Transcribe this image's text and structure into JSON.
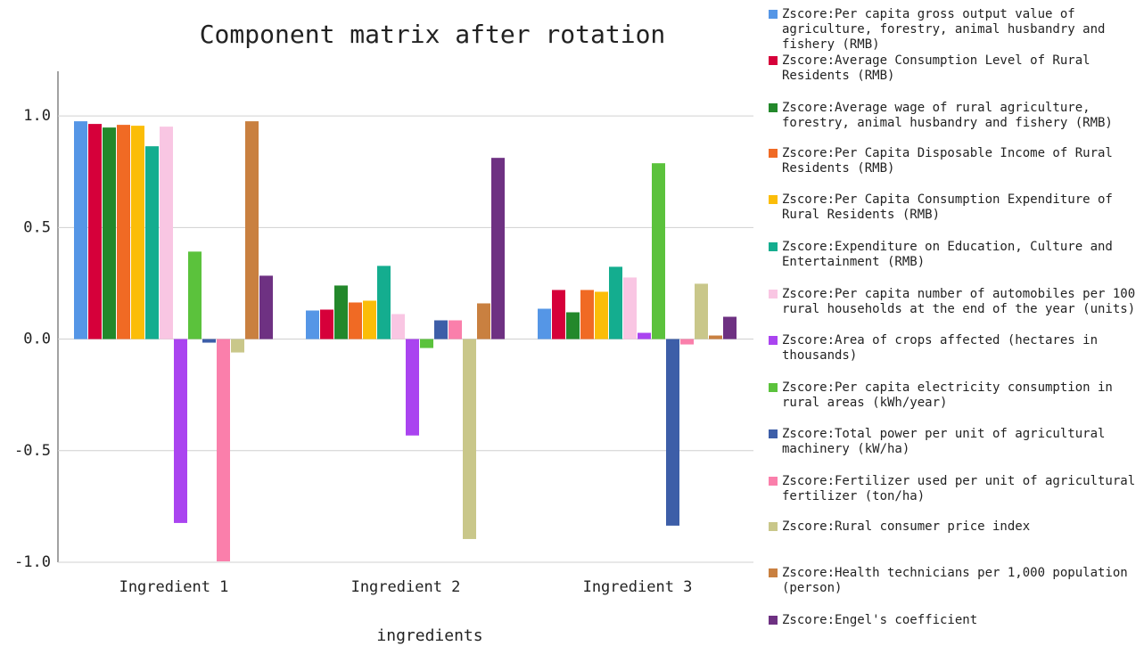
{
  "chart_data": {
    "type": "bar",
    "title": "Component matrix after rotation",
    "x_label": "ingredients",
    "categories": [
      "Ingredient 1",
      "Ingredient 2",
      "Ingredient 3"
    ],
    "ylim": [
      -1,
      1.2
    ],
    "yticks": [
      {
        "value": -1,
        "label": "-1.0"
      },
      -0.5,
      {
        "value": 0,
        "label": "0.0"
      },
      0.5,
      {
        "value": 1,
        "label": "1.0"
      }
    ],
    "grid": true,
    "series": [
      {
        "name": "Zscore:Per capita gross output value of agriculture, forestry, animal husbandry and fishery (RMB)",
        "color": "#5596e6",
        "values": [
          0.976,
          0.128,
          0.136
        ]
      },
      {
        "name": "Zscore:Average Consumption Level of Rural Residents (RMB)",
        "color": "#d6003a",
        "values": [
          0.964,
          0.132,
          0.22
        ]
      },
      {
        "name": "Zscore:Average wage of rural agriculture, forestry, animal husbandry and fishery (RMB)",
        "color": "#23882b",
        "values": [
          0.948,
          0.24,
          0.12
        ]
      },
      {
        "name": "Zscore:Per Capita Disposable Income of Rural Residents (RMB)",
        "color": "#f06a24",
        "values": [
          0.96,
          0.164,
          0.22
        ]
      },
      {
        "name": "Zscore:Per Capita Consumption Expenditure of Rural Residents (RMB)",
        "color": "#fbbd08",
        "values": [
          0.956,
          0.172,
          0.212
        ]
      },
      {
        "name": "Zscore:Expenditure on Education, Culture and Entertainment (RMB)",
        "color": "#14ad8f",
        "values": [
          0.864,
          0.328,
          0.324
        ]
      },
      {
        "name": "Zscore:Per capita number of automobiles per 100 rural households at the end of the year (units)",
        "color": "#f9c6e3",
        "values": [
          0.952,
          0.112,
          0.276
        ]
      },
      {
        "name": "Zscore:Area of crops affected (hectares in thousands)",
        "color": "#aa44f0",
        "values": [
          -0.824,
          -0.432,
          0.028
        ]
      },
      {
        "name": "Zscore:Per capita electricity consumption in rural areas (kWh/year)",
        "color": "#5bc23c",
        "values": [
          0.392,
          -0.04,
          0.788
        ]
      },
      {
        "name": "Zscore:Total power per unit of agricultural machinery (kW/ha)",
        "color": "#3d5ea8",
        "values": [
          -0.016,
          0.084,
          -0.836
        ]
      },
      {
        "name": "Zscore:Fertilizer used per unit of agricultural fertilizer (ton/ha)",
        "color": "#fa7fab",
        "values": [
          -0.996,
          0.084,
          -0.024
        ]
      },
      {
        "name": "Zscore:Rural consumer price index",
        "color": "#c9c78a",
        "values": [
          -0.06,
          -0.896,
          0.248
        ]
      },
      {
        "name": "Zscore:Health technicians per 1,000 population (person)",
        "color": "#c98040",
        "values": [
          0.976,
          0.16,
          0.016
        ]
      },
      {
        "name": "Zscore:Engel's coefficient",
        "color": "#6e3182",
        "values": [
          0.284,
          0.812,
          0.1
        ]
      }
    ]
  }
}
